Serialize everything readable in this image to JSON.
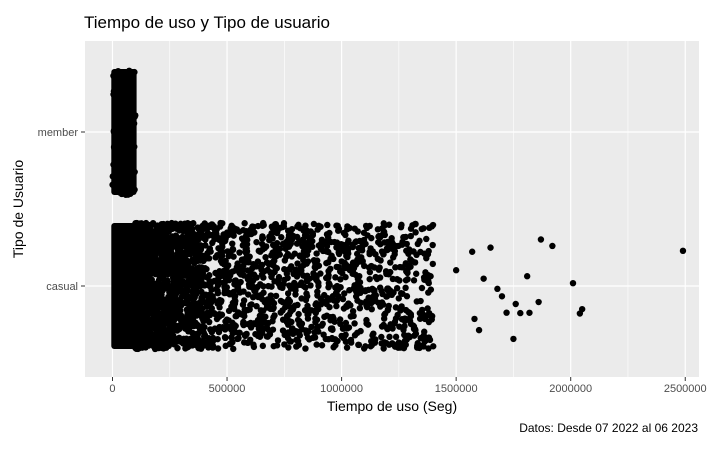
{
  "chart_data": {
    "type": "scatter",
    "title": "Tiempo de uso y Tipo de usuario",
    "xlabel": "Tiempo de uso (Seg)",
    "ylabel": "Tipo de Usuario",
    "caption": "Datos: Desde 07 2022 al 06 2023",
    "categories": [
      "casual",
      "member"
    ],
    "xlim": [
      -120000,
      2560000
    ],
    "x_ticks": [
      0,
      500000,
      1000000,
      1500000,
      2000000,
      2500000
    ],
    "x_tick_labels": [
      "0",
      "500000",
      "1000000",
      "1500000",
      "2000000",
      "2500000"
    ],
    "grid": true,
    "jitter": true,
    "colors": {
      "panel": "#ebebeb",
      "grid": "#ffffff",
      "point": "#000000"
    },
    "series": [
      {
        "category": "member",
        "range": [
          0,
          100000
        ],
        "dense": true,
        "points": [
          {
            "x": 0,
            "y": "member"
          },
          {
            "x": 100000,
            "y": "member"
          }
        ]
      },
      {
        "category": "casual",
        "range": [
          0,
          2490000
        ],
        "dense_range": [
          0,
          110000
        ],
        "points": [
          {
            "x": 0,
            "y": "casual"
          },
          {
            "x": 110000,
            "y": "casual"
          },
          {
            "x": 1300000,
            "y": "casual"
          },
          {
            "x": 1380000,
            "y": "casual"
          },
          {
            "x": 1400000,
            "y": "casual"
          },
          {
            "x": 1500000,
            "y": "casual"
          },
          {
            "x": 1570000,
            "y": "casual"
          },
          {
            "x": 1580000,
            "y": "casual"
          },
          {
            "x": 1600000,
            "y": "casual"
          },
          {
            "x": 1620000,
            "y": "casual"
          },
          {
            "x": 1650000,
            "y": "casual"
          },
          {
            "x": 1680000,
            "y": "casual"
          },
          {
            "x": 1700000,
            "y": "casual"
          },
          {
            "x": 1720000,
            "y": "casual"
          },
          {
            "x": 1750000,
            "y": "casual"
          },
          {
            "x": 1760000,
            "y": "casual"
          },
          {
            "x": 1780000,
            "y": "casual"
          },
          {
            "x": 1810000,
            "y": "casual"
          },
          {
            "x": 1820000,
            "y": "casual"
          },
          {
            "x": 1860000,
            "y": "casual"
          },
          {
            "x": 1870000,
            "y": "casual"
          },
          {
            "x": 1920000,
            "y": "casual"
          },
          {
            "x": 2010000,
            "y": "casual"
          },
          {
            "x": 2040000,
            "y": "casual"
          },
          {
            "x": 2050000,
            "y": "casual"
          },
          {
            "x": 2490000,
            "y": "casual"
          }
        ]
      }
    ]
  }
}
